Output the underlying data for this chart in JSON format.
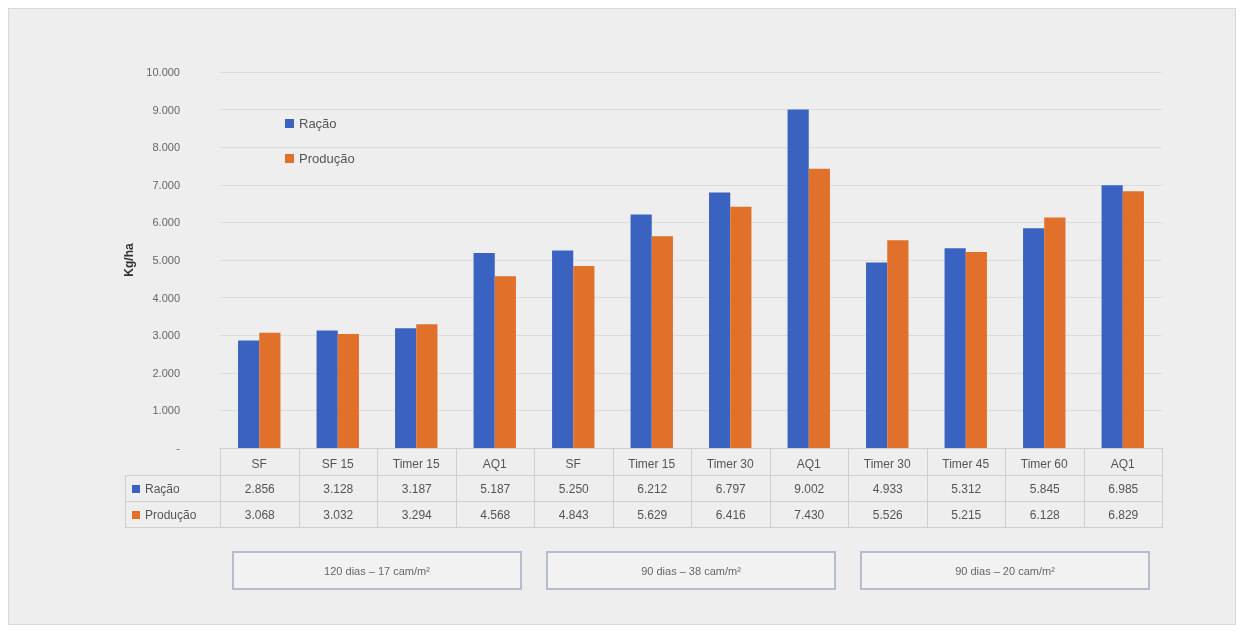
{
  "chart_data": {
    "type": "bar",
    "ylabel": "Kg/ha",
    "categories": [
      "SF",
      "SF 15",
      "Timer 15",
      "AQ1",
      "SF",
      "Timer 15",
      "Timer 30",
      "AQ1",
      "Timer 30",
      "Timer 45",
      "Timer 60",
      "AQ1"
    ],
    "series": [
      {
        "name": "Ração",
        "color": "#3a62c0",
        "values": [
          2856,
          3128,
          3187,
          5187,
          5250,
          6212,
          6797,
          9002,
          4933,
          5312,
          5845,
          6985
        ],
        "value_labels": [
          "2.856",
          "3.128",
          "3.187",
          "5.187",
          "5.250",
          "6.212",
          "6.797",
          "9.002",
          "4.933",
          "5.312",
          "5.845",
          "6.985"
        ]
      },
      {
        "name": "Produção",
        "color": "#e0702a",
        "values": [
          3068,
          3032,
          3294,
          4568,
          4843,
          5629,
          6416,
          7430,
          5526,
          5215,
          6128,
          6829
        ],
        "value_labels": [
          "3.068",
          "3.032",
          "3.294",
          "4.568",
          "4.843",
          "5.629",
          "6.416",
          "7.430",
          "5.526",
          "5.215",
          "6.128",
          "6.829"
        ]
      }
    ],
    "ylim": [
      0,
      10000
    ],
    "yticks": [
      {
        "value": 0,
        "label": "-"
      },
      {
        "value": 1000,
        "label": "1.000"
      },
      {
        "value": 2000,
        "label": "2.000"
      },
      {
        "value": 3000,
        "label": "3.000"
      },
      {
        "value": 4000,
        "label": "4.000"
      },
      {
        "value": 5000,
        "label": "5.000"
      },
      {
        "value": 6000,
        "label": "6.000"
      },
      {
        "value": 7000,
        "label": "7.000"
      },
      {
        "value": 8000,
        "label": "8.000"
      },
      {
        "value": 9000,
        "label": "9.000"
      },
      {
        "value": 10000,
        "label": "10.000"
      }
    ],
    "grid": "y",
    "legend": "top left",
    "annotations": [
      "120 dias – 17 cam/m²",
      "90 dias – 38 cam/m²",
      "90 dias – 20 cam/m²"
    ]
  }
}
